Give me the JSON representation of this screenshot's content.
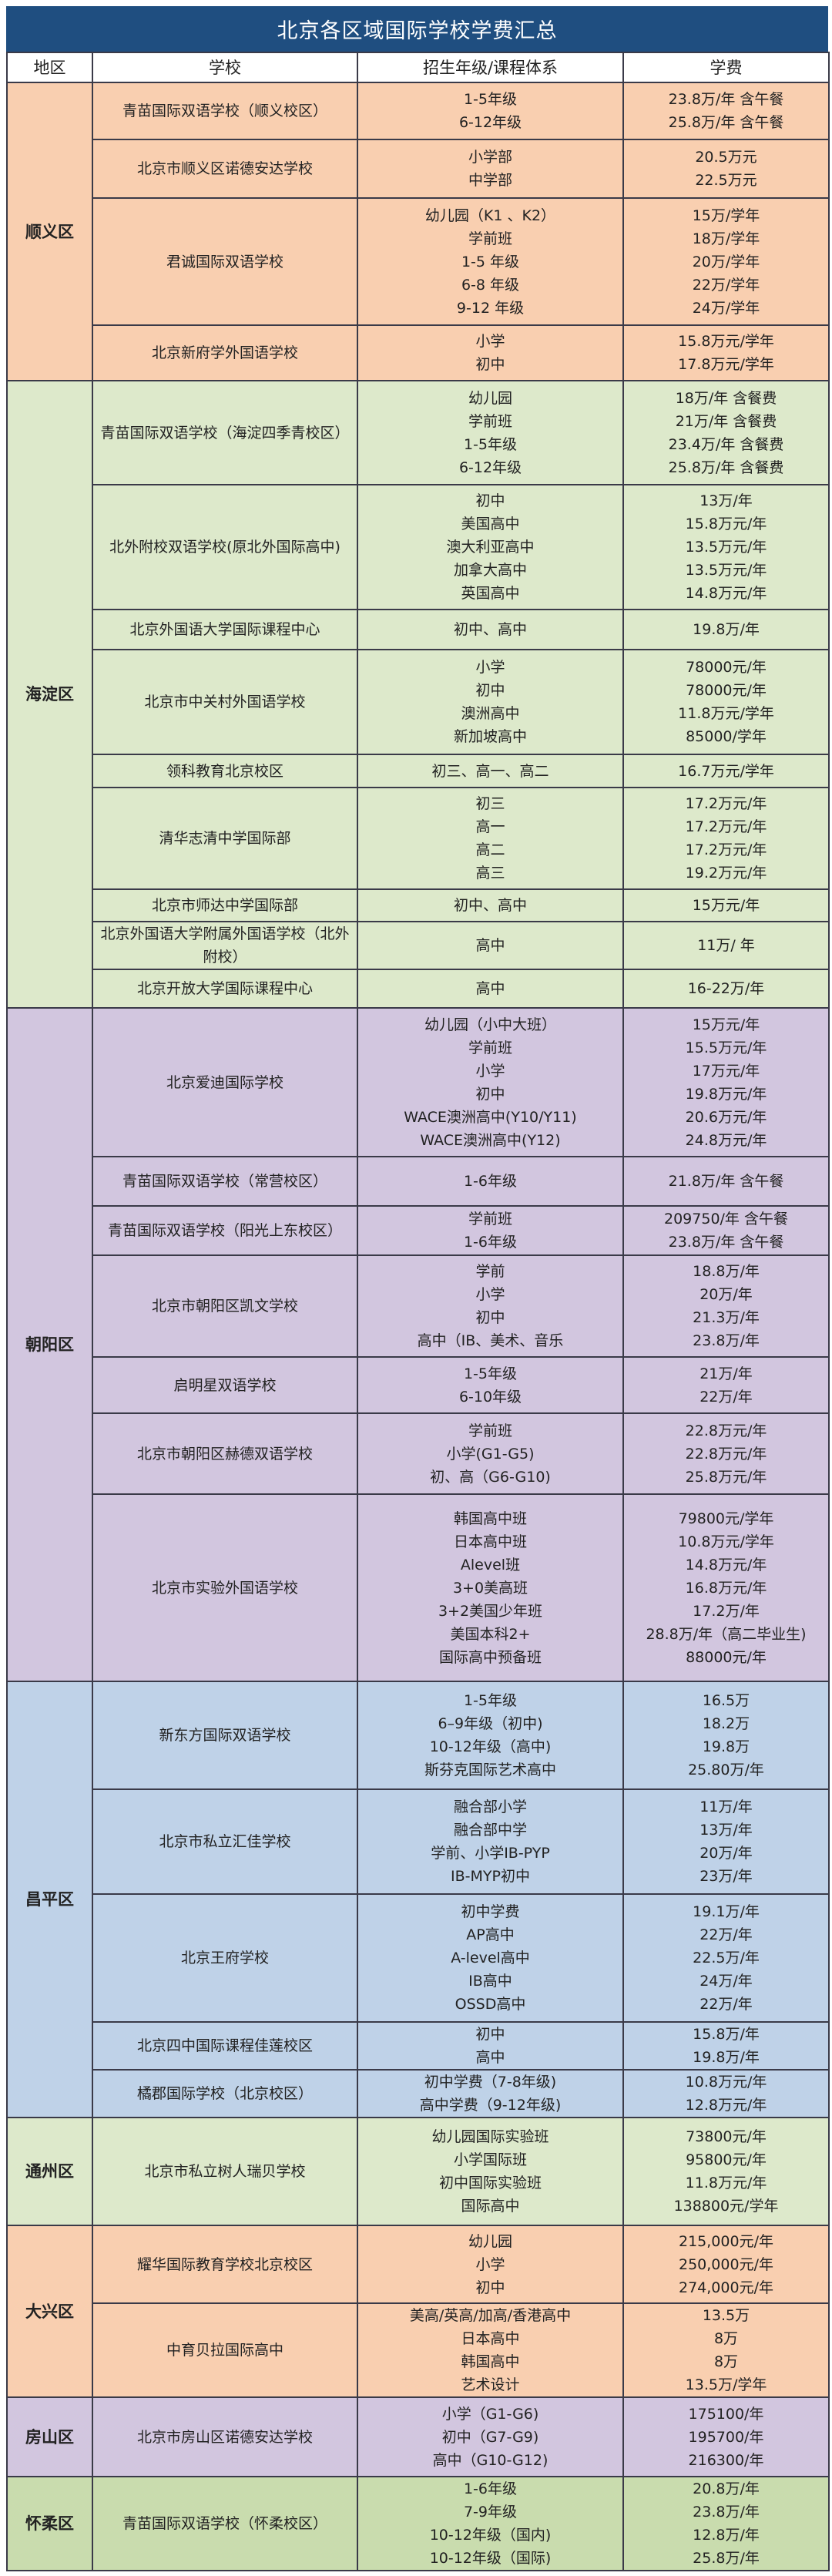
{
  "title": "北京各区域国际学校学费汇总",
  "headers": [
    "地区",
    "学校",
    "招生年级/课程体系",
    "学费"
  ],
  "colors": {
    "title_bg": "#1f4e80",
    "orange": "#f9cfb0",
    "green": "#dde9cb",
    "purple": "#d2c6df",
    "blue": "#bfd2e8"
  },
  "districts": [
    {
      "name": "顺义区",
      "color": "#f9cfb0",
      "schools": [
        {
          "name": "青苗国际双语学校（顺义校区）",
          "levels": [
            "1-5年级",
            "6-12年级"
          ],
          "fees": [
            "23.8万/年 含午餐",
            "25.8万/年 含午餐"
          ]
        },
        {
          "name": "北京市顺义区诺德安达学校",
          "levels": [
            "小学部",
            "中学部"
          ],
          "fees": [
            "20.5万元",
            "22.5万元"
          ]
        },
        {
          "name": "君诚国际双语学校",
          "levels": [
            "幼儿园（K1 、K2）",
            "学前班",
            "1-5 年级",
            "6-8 年级",
            "9-12 年级"
          ],
          "fees": [
            "15万/学年",
            "18万/学年",
            "20万/学年",
            "22万/学年",
            "24万/学年"
          ]
        },
        {
          "name": "北京新府学外国语学校",
          "levels": [
            "小学",
            "初中"
          ],
          "fees": [
            "15.8万元/学年",
            "17.8万元/学年"
          ]
        }
      ]
    },
    {
      "name": "海淀区",
      "color": "#dde9cb",
      "schools": [
        {
          "name": "青苗国际双语学校（海淀四季青校区）",
          "levels": [
            "幼儿园",
            "学前班",
            "1-5年级",
            "6-12年级"
          ],
          "fees": [
            "18万/年 含餐费",
            "21万/年 含餐费",
            "23.4万/年 含餐费",
            "25.8万/年 含餐费"
          ]
        },
        {
          "name": "北外附校双语学校(原北外国际高中)",
          "levels": [
            "初中",
            "美国高中",
            "澳大利亚高中",
            "加拿大高中",
            "英国高中"
          ],
          "fees": [
            "13万/年",
            "15.8万元/年",
            "13.5万元/年",
            "13.5万元/年",
            "14.8万元/年"
          ]
        },
        {
          "name": "北京外国语大学国际课程中心",
          "levels": [
            "初中、高中"
          ],
          "fees": [
            "19.8万/年"
          ]
        },
        {
          "name": "北京市中关村外国语学校",
          "levels": [
            "小学",
            "初中",
            "澳洲高中",
            "新加坡高中"
          ],
          "fees": [
            "78000元/年",
            "78000元/年",
            "11.8万元/学年",
            "85000/学年"
          ]
        },
        {
          "name": "领科教育北京校区",
          "levels": [
            "初三、高一、高二"
          ],
          "fees": [
            "16.7万元/学年"
          ]
        },
        {
          "name": "清华志清中学国际部",
          "levels": [
            "初三",
            "高一",
            "高二",
            "高三"
          ],
          "fees": [
            "17.2万元/年",
            "17.2万元/年",
            "17.2万元/年",
            "19.2万元/年"
          ]
        },
        {
          "name": "北京市师达中学国际部",
          "levels": [
            "初中、高中"
          ],
          "fees": [
            "15万元/年"
          ]
        },
        {
          "name": "北京外国语大学附属外国语学校（北外附校）",
          "levels": [
            "高中"
          ],
          "fees": [
            "11万/ 年"
          ]
        },
        {
          "name": "北京开放大学国际课程中心",
          "levels": [
            "高中"
          ],
          "fees": [
            "16-22万/年"
          ]
        }
      ]
    },
    {
      "name": "朝阳区",
      "color": "#d2c6df",
      "schools": [
        {
          "name": "北京爱迪国际学校",
          "levels": [
            "幼儿园（小中大班）",
            "学前班",
            "小学",
            "初中",
            "WACE澳洲高中(Y10/Y11)",
            "WACE澳洲高中(Y12)"
          ],
          "fees": [
            "15万元/年",
            "15.5万元/年",
            "17万元/年",
            "19.8万元/年",
            "20.6万元/年",
            "24.8万元/年"
          ]
        },
        {
          "name": "青苗国际双语学校（常营校区）",
          "levels": [
            "1-6年级"
          ],
          "fees": [
            "21.8万/年 含午餐"
          ]
        },
        {
          "name": "青苗国际双语学校（阳光上东校区）",
          "levels": [
            "学前班",
            "1-6年级"
          ],
          "fees": [
            "209750/年 含午餐",
            "23.8万/年 含午餐"
          ]
        },
        {
          "name": "北京市朝阳区凯文学校",
          "levels": [
            "学前",
            "小学",
            "初中",
            "高中（IB、美术、音乐"
          ],
          "fees": [
            "18.8万/年",
            "20万/年",
            "21.3万/年",
            "23.8万/年"
          ]
        },
        {
          "name": "启明星双语学校",
          "levels": [
            "1-5年级",
            "6-10年级"
          ],
          "fees": [
            "21万/年",
            "22万/年"
          ]
        },
        {
          "name": "北京市朝阳区赫德双语学校",
          "levels": [
            "学前班",
            "小学(G1-G5)",
            "初、高（G6-G10)"
          ],
          "fees": [
            "22.8万元/年",
            "22.8万元/年",
            "25.8万元/年"
          ]
        },
        {
          "name": "北京市实验外国语学校",
          "levels": [
            "韩国高中班",
            "日本高中班",
            "Alevel班",
            "3+0美高班",
            "3+2美国少年班",
            "美国本科2+",
            "国际高中预备班"
          ],
          "fees": [
            "79800元/学年",
            "10.8万元/学年",
            "14.8万元/年",
            "16.8万元/年",
            "17.2万/年",
            "28.8万/年（高二毕业生)",
            "88000元/年"
          ]
        }
      ]
    },
    {
      "name": "昌平区",
      "color": "#bfd2e8",
      "schools": [
        {
          "name": "新东方国际双语学校",
          "levels": [
            "1-5年级",
            "6–9年级（初中)",
            "10-12年级（高中)",
            "斯芬克国际艺术高中"
          ],
          "fees": [
            "16.5万",
            "18.2万",
            "19.8万",
            "25.80万/年"
          ]
        },
        {
          "name": "北京市私立汇佳学校",
          "levels": [
            "融合部小学",
            "融合部中学",
            "学前、小学IB-PYP",
            "IB-MYP初中"
          ],
          "fees": [
            "11万/年",
            "13万/年",
            "20万/年",
            "23万/年"
          ]
        },
        {
          "name": "北京王府学校",
          "levels": [
            "初中学费",
            "AP高中",
            "A-level高中",
            "IB高中",
            "OSSD高中"
          ],
          "fees": [
            "19.1万/年",
            "22万/年",
            "22.5万/年",
            "24万/年",
            "22万/年"
          ]
        },
        {
          "name": "北京四中国际课程佳莲校区",
          "levels": [
            "初中",
            "高中"
          ],
          "fees": [
            "15.8万/年",
            "19.8万/年"
          ]
        },
        {
          "name": "橘郡国际学校（北京校区）",
          "levels": [
            "初中学费（7-8年级)",
            "高中学费（9-12年级)"
          ],
          "fees": [
            "10.8万元/年",
            "12.8万元/年"
          ]
        }
      ]
    },
    {
      "name": "通州区",
      "color": "#dde9cb",
      "schools": [
        {
          "name": "北京市私立树人瑞贝学校",
          "levels": [
            "幼儿园国际实验班",
            "小学国际班",
            "初中国际实验班",
            "国际高中"
          ],
          "fees": [
            "73800元/年",
            "95800元/年",
            "11.8万元/年",
            "138800元/学年"
          ]
        }
      ]
    },
    {
      "name": "大兴区",
      "color": "#f9cfb0",
      "schools": [
        {
          "name": "耀华国际教育学校北京校区",
          "levels": [
            "幼儿园",
            "小学",
            "初中"
          ],
          "fees": [
            "215,000元/年",
            "250,000元/年",
            "274,000元/年"
          ]
        },
        {
          "name": "中育贝拉国际高中",
          "levels": [
            "美高/英高/加高/香港高中",
            "日本高中",
            "韩国高中",
            "艺术设计"
          ],
          "fees": [
            "13.5万",
            "8万",
            "8万",
            "13.5万/学年"
          ]
        }
      ]
    },
    {
      "name": "房山区",
      "color": "#d2c6df",
      "schools": [
        {
          "name": "北京市房山区诺德安达学校",
          "levels": [
            "小学（G1-G6)",
            "初中（G7-G9)",
            "高中（G10-G12)"
          ],
          "fees": [
            "175100/年",
            "195700/年",
            "216300/年"
          ]
        }
      ]
    },
    {
      "name": "怀柔区",
      "color": "#c9dcae",
      "schools": [
        {
          "name": "青苗国际双语学校（怀柔校区）",
          "levels": [
            "1-6年级",
            "7-9年级",
            "10-12年级（国内)",
            "10-12年级（国际)"
          ],
          "fees": [
            "20.8万/年",
            "23.8万/年",
            "12.8万/年",
            "25.8万/年"
          ]
        }
      ]
    }
  ]
}
